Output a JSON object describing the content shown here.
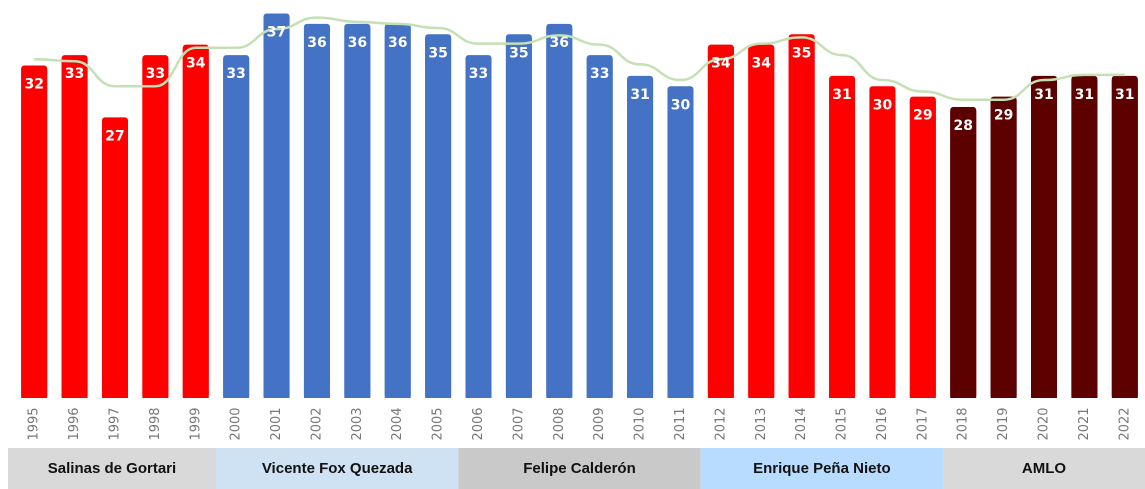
{
  "chart_data": {
    "type": "bar",
    "categories": [
      "1995",
      "1996",
      "1997",
      "1998",
      "1999",
      "2000",
      "2001",
      "2002",
      "2003",
      "2004",
      "2005",
      "2006",
      "2007",
      "2008",
      "2009",
      "2010",
      "2011",
      "2012",
      "2013",
      "2014",
      "2015",
      "2016",
      "2017",
      "2018",
      "2019",
      "2020",
      "2021",
      "2022"
    ],
    "values": [
      32,
      33,
      27,
      33,
      34,
      33,
      37,
      36,
      36,
      36,
      35,
      33,
      35,
      36,
      33,
      31,
      30,
      34,
      34,
      35,
      31,
      30,
      29,
      28,
      29,
      31,
      31,
      31
    ],
    "colors": [
      "#ff0000",
      "#ff0000",
      "#ff0000",
      "#ff0000",
      "#ff0000",
      "#4472c4",
      "#4472c4",
      "#4472c4",
      "#4472c4",
      "#4472c4",
      "#4472c4",
      "#4472c4",
      "#4472c4",
      "#4472c4",
      "#4472c4",
      "#4472c4",
      "#4472c4",
      "#ff0000",
      "#ff0000",
      "#ff0000",
      "#ff0000",
      "#ff0000",
      "#ff0000",
      "#5c0000",
      "#5c0000",
      "#5c0000",
      "#5c0000",
      "#5c0000"
    ],
    "trend": {
      "color": "#c5e0b4",
      "values": [
        32.6,
        32.4,
        30,
        30,
        33.7,
        33.7,
        35.5,
        36.6,
        36.2,
        36,
        35.6,
        34.1,
        34.1,
        34.9,
        34,
        32.1,
        30.6,
        32.6,
        34.1,
        34.7,
        33,
        30.6,
        29.5,
        28.7,
        28.7,
        30.6,
        31.1,
        31.1
      ]
    },
    "ylim": [
      0,
      38.3
    ],
    "periods": [
      {
        "name": "Salinas de Gortari",
        "span": [
          0,
          4
        ],
        "color": "#d9d9d9"
      },
      {
        "name": "Vicente Fox Quezada",
        "span": [
          5,
          10
        ],
        "color": "#cfe2f3"
      },
      {
        "name": "Felipe Calderón",
        "span": [
          11,
          16
        ],
        "color": "#c9c9c9"
      },
      {
        "name": "Enrique Peña Nieto",
        "span": [
          17,
          22
        ],
        "color": "#b7dcff"
      },
      {
        "name": "AMLO",
        "span": [
          23,
          27
        ],
        "color": "#d9d9d9"
      }
    ]
  }
}
